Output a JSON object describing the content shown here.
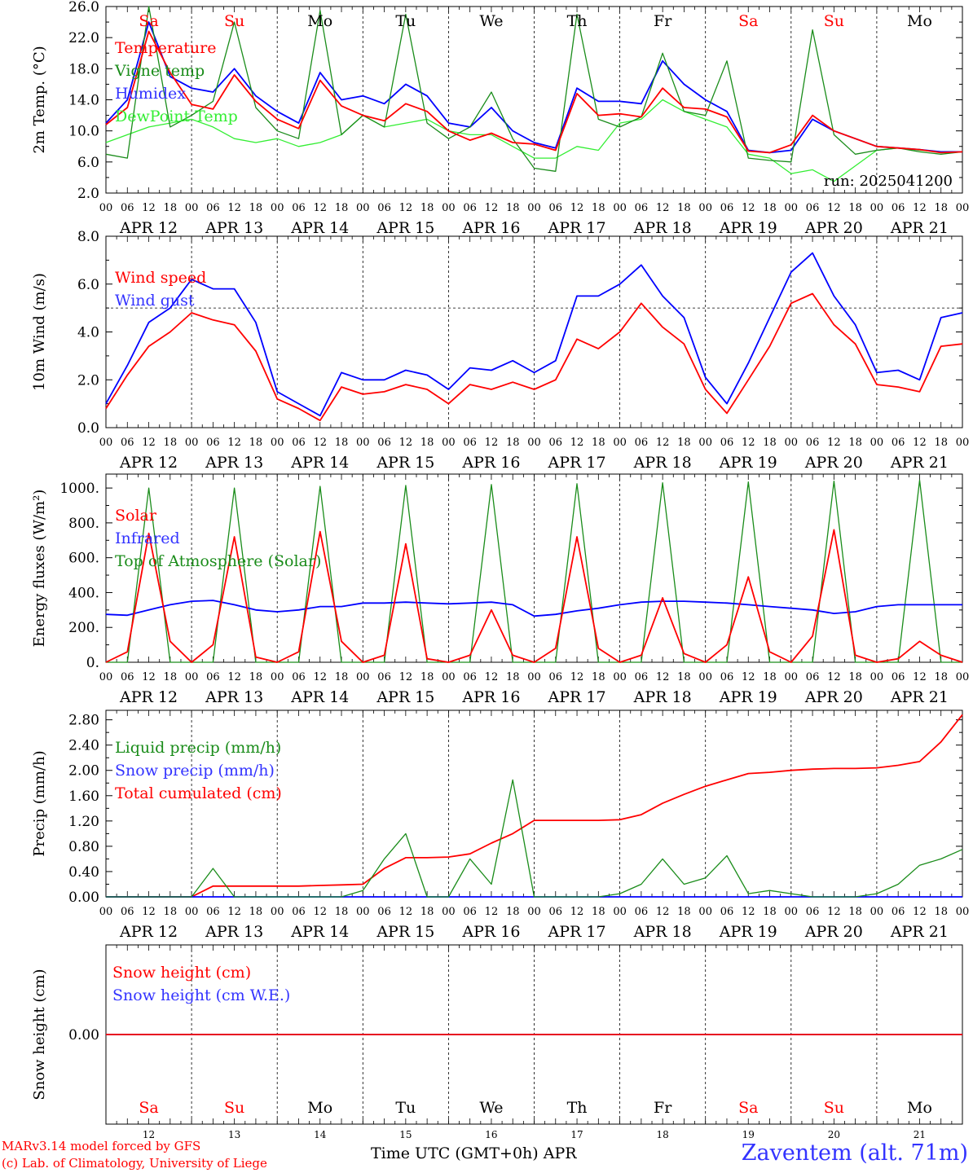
{
  "colors": {
    "red": "#ff0000",
    "green": "#1a8c1a",
    "blue": "#0000ff",
    "lightgreen": "#33ee33",
    "text": "#000000",
    "weekend": "#ff0000",
    "legend_blue": "#3333ff"
  },
  "footer": {
    "model": "MARv3.14 model forced by GFS",
    "credit": "(c) Lab. of Climatology, University of Liege",
    "xlabel": "Time UTC (GMT+0h) APR",
    "station": "Zaventem (alt. 71m)"
  },
  "days": {
    "weekday_names": [
      "Sa",
      "Su",
      "Mo",
      "Tu",
      "We",
      "Th",
      "Fr",
      "Sa",
      "Su",
      "Mo"
    ],
    "weekend_flags": [
      true,
      true,
      false,
      false,
      false,
      false,
      false,
      true,
      true,
      false
    ],
    "date_labels": [
      "APR 12",
      "APR 13",
      "APR 14",
      "APR 15",
      "APR 16",
      "APR 17",
      "APR 18",
      "APR 19",
      "APR 20",
      "APR 21"
    ],
    "day_numbers": [
      "12",
      "13",
      "14",
      "15",
      "16",
      "17",
      "18",
      "19",
      "20",
      "21"
    ],
    "hour_ticks": [
      "00",
      "06",
      "12",
      "18"
    ],
    "final_tick": "00"
  },
  "chart_data": [
    {
      "type": "line",
      "ylabel": "2m Temp. (°C)",
      "ylim": [
        2,
        26
      ],
      "yticks": [
        "2.0",
        "6.0",
        "10.0",
        "14.0",
        "18.0",
        "22.0",
        "26.0"
      ],
      "annotation": "run: 2025041200",
      "x_hours": [
        0,
        6,
        12,
        18,
        24,
        30,
        36,
        42,
        48,
        54,
        60,
        66,
        72,
        78,
        84,
        90,
        96,
        102,
        108,
        114,
        120,
        126,
        132,
        138,
        144,
        150,
        156,
        162,
        168,
        174,
        180,
        186,
        192,
        198,
        204,
        210,
        216,
        222,
        228,
        234,
        240
      ],
      "series": [
        {
          "name": "Temperature",
          "color": "red",
          "values": [
            10.8,
            13.0,
            22.8,
            17.5,
            13.4,
            12.8,
            17.2,
            13.8,
            11.5,
            10.3,
            16.5,
            13.2,
            12.0,
            11.3,
            13.5,
            12.5,
            10.0,
            8.8,
            9.7,
            8.5,
            8.3,
            7.5,
            14.8,
            12.0,
            12.2,
            11.8,
            15.5,
            13.0,
            12.8,
            11.8,
            7.4,
            7.2,
            8.2,
            12.0,
            10.0,
            9.0,
            8.0,
            7.8,
            7.6,
            7.2,
            7.3
          ]
        },
        {
          "name": "Vigne temp",
          "color": "green",
          "values": [
            7.0,
            6.5,
            26.0,
            10.5,
            12.0,
            13.8,
            24.0,
            13.0,
            10.0,
            9.0,
            25.5,
            9.5,
            12.0,
            10.5,
            25.0,
            11.0,
            9.0,
            10.5,
            15.0,
            9.0,
            5.2,
            4.8,
            25.0,
            11.5,
            10.5,
            11.8,
            20.0,
            12.5,
            12.0,
            19.0,
            6.5,
            6.2,
            6.0,
            23.0,
            9.5,
            7.0,
            7.5,
            7.8,
            7.3,
            7.0,
            7.3
          ]
        },
        {
          "name": "Humidex",
          "color": "blue",
          "values": [
            11.0,
            14.0,
            24.0,
            17.0,
            15.5,
            15.0,
            18.0,
            14.5,
            12.5,
            11.0,
            17.5,
            14.0,
            14.5,
            13.5,
            16.0,
            14.5,
            11.0,
            10.5,
            13.0,
            10.0,
            8.5,
            7.8,
            15.5,
            13.8,
            13.8,
            13.5,
            19.0,
            16.0,
            14.0,
            12.5,
            7.5,
            7.2,
            7.5,
            11.5,
            10.0,
            9.0,
            8.0,
            7.8,
            7.6,
            7.3,
            7.3
          ]
        },
        {
          "name": "DewPoint Temp",
          "color": "lightgreen",
          "values": [
            8.5,
            9.5,
            10.5,
            11.0,
            11.5,
            10.5,
            9.0,
            8.5,
            9.0,
            8.0,
            8.5,
            9.5,
            12.0,
            10.5,
            11.0,
            11.5,
            10.0,
            9.5,
            9.5,
            8.0,
            6.5,
            6.5,
            8.0,
            7.5,
            11.0,
            11.5,
            14.0,
            12.5,
            11.5,
            10.5,
            7.0,
            6.5,
            4.5,
            5.0,
            3.5,
            5.5,
            7.5,
            7.8,
            7.5,
            7.3,
            7.3
          ]
        }
      ],
      "legend_location": "left"
    },
    {
      "type": "line",
      "ylabel": "10m Wind (m/s)",
      "ylim": [
        0,
        8
      ],
      "yticks": [
        "0.0",
        "2.0",
        "4.0",
        "6.0",
        "8.0"
      ],
      "reference_line": 5.0,
      "x_hours": [
        0,
        6,
        12,
        18,
        24,
        30,
        36,
        42,
        48,
        54,
        60,
        66,
        72,
        78,
        84,
        90,
        96,
        102,
        108,
        114,
        120,
        126,
        132,
        138,
        144,
        150,
        156,
        162,
        168,
        174,
        180,
        186,
        192,
        198,
        204,
        210,
        216,
        222,
        228,
        234,
        240
      ],
      "series": [
        {
          "name": "Wind speed",
          "color": "red",
          "values": [
            0.8,
            2.2,
            3.4,
            4.0,
            4.8,
            4.5,
            4.3,
            3.2,
            1.2,
            0.8,
            0.3,
            1.7,
            1.4,
            1.5,
            1.8,
            1.6,
            1.0,
            1.8,
            1.6,
            1.9,
            1.6,
            2.0,
            3.7,
            3.3,
            4.0,
            5.2,
            4.2,
            3.5,
            1.6,
            0.6,
            2.0,
            3.4,
            5.2,
            5.6,
            4.3,
            3.5,
            1.8,
            1.7,
            1.5,
            3.4,
            3.5
          ]
        },
        {
          "name": "Wind gust",
          "color": "blue",
          "values": [
            1.0,
            2.6,
            4.4,
            5.0,
            6.2,
            5.8,
            5.8,
            4.4,
            1.5,
            1.0,
            0.5,
            2.3,
            2.0,
            2.0,
            2.4,
            2.2,
            1.6,
            2.5,
            2.4,
            2.8,
            2.3,
            2.8,
            5.5,
            5.5,
            6.0,
            6.8,
            5.5,
            4.6,
            2.1,
            1.0,
            2.7,
            4.6,
            6.5,
            7.3,
            5.5,
            4.3,
            2.3,
            2.4,
            2.0,
            4.6,
            4.8
          ]
        }
      ],
      "legend_location": "left"
    },
    {
      "type": "line",
      "ylabel": "Energy fluxes (W/m²)",
      "ylim": [
        0,
        1080
      ],
      "yticks": [
        "0.",
        "200.",
        "400.",
        "600.",
        "800.",
        "1000."
      ],
      "x_hours": [
        0,
        6,
        12,
        18,
        24,
        30,
        36,
        42,
        48,
        54,
        60,
        66,
        72,
        78,
        84,
        90,
        96,
        102,
        108,
        114,
        120,
        126,
        132,
        138,
        144,
        150,
        156,
        162,
        168,
        174,
        180,
        186,
        192,
        198,
        204,
        210,
        216,
        222,
        228,
        234,
        240
      ],
      "series": [
        {
          "name": "Solar",
          "color": "red",
          "values": [
            0,
            60,
            740,
            120,
            0,
            100,
            720,
            30,
            0,
            60,
            750,
            120,
            0,
            40,
            680,
            20,
            0,
            40,
            300,
            40,
            0,
            80,
            720,
            80,
            0,
            40,
            370,
            50,
            0,
            100,
            490,
            60,
            0,
            150,
            760,
            40,
            0,
            20,
            120,
            40,
            0
          ]
        },
        {
          "name": "Infrared",
          "color": "blue",
          "values": [
            275,
            270,
            300,
            330,
            350,
            355,
            330,
            300,
            290,
            300,
            320,
            320,
            340,
            340,
            345,
            340,
            335,
            340,
            345,
            330,
            265,
            275,
            295,
            310,
            330,
            345,
            350,
            350,
            345,
            340,
            330,
            320,
            310,
            300,
            280,
            290,
            320,
            330,
            330,
            330,
            330
          ]
        },
        {
          "name": "Top of Atmosphere (Solar)",
          "color": "green",
          "values": [
            0,
            0,
            1000,
            0,
            0,
            0,
            1000,
            0,
            0,
            0,
            1010,
            0,
            0,
            0,
            1015,
            0,
            0,
            0,
            1020,
            0,
            0,
            0,
            1025,
            0,
            0,
            0,
            1030,
            0,
            0,
            0,
            1035,
            0,
            0,
            0,
            1040,
            0,
            0,
            0,
            1045,
            0,
            0
          ]
        }
      ],
      "legend_location": "left"
    },
    {
      "type": "line",
      "ylabel": "Precip (mm/h)",
      "ylim": [
        0,
        2.95
      ],
      "yticks": [
        "0.00",
        "0.40",
        "0.80",
        "1.20",
        "1.60",
        "2.00",
        "2.40",
        "2.80"
      ],
      "x_hours": [
        0,
        6,
        12,
        18,
        24,
        30,
        36,
        42,
        48,
        54,
        60,
        66,
        72,
        78,
        84,
        90,
        96,
        102,
        108,
        114,
        120,
        126,
        132,
        138,
        144,
        150,
        156,
        162,
        168,
        174,
        180,
        186,
        192,
        198,
        204,
        210,
        216,
        222,
        228,
        234,
        240
      ],
      "series": [
        {
          "name": "Liquid precip (mm/h)",
          "color": "green",
          "values": [
            0,
            0,
            0,
            0,
            0,
            0.45,
            0,
            0,
            0,
            0,
            0,
            0,
            0.1,
            0.6,
            1.0,
            0,
            0,
            0.6,
            0.2,
            1.85,
            0,
            0,
            0,
            0,
            0.05,
            0.2,
            0.6,
            0.2,
            0.3,
            0.65,
            0.05,
            0.1,
            0.05,
            0,
            0,
            0,
            0.05,
            0.2,
            0.5,
            0.6,
            0.75
          ]
        },
        {
          "name": "Snow precip (mm/h)",
          "color": "blue",
          "values": [
            0,
            0,
            0,
            0,
            0,
            0,
            0,
            0,
            0,
            0,
            0,
            0,
            0,
            0,
            0,
            0,
            0,
            0,
            0,
            0,
            0,
            0,
            0,
            0,
            0,
            0,
            0,
            0,
            0,
            0,
            0,
            0,
            0,
            0,
            0,
            0,
            0,
            0,
            0,
            0,
            0
          ]
        },
        {
          "name": "Total cumulated (cm)",
          "color": "red",
          "values": [
            0,
            0,
            0,
            0,
            0,
            0.17,
            0.17,
            0.17,
            0.17,
            0.17,
            0.18,
            0.19,
            0.2,
            0.45,
            0.62,
            0.62,
            0.63,
            0.68,
            0.85,
            1.0,
            1.21,
            1.21,
            1.21,
            1.21,
            1.22,
            1.3,
            1.48,
            1.62,
            1.75,
            1.85,
            1.95,
            1.97,
            2.0,
            2.02,
            2.03,
            2.03,
            2.04,
            2.08,
            2.14,
            2.45,
            2.88
          ]
        }
      ],
      "legend_location": "left"
    },
    {
      "type": "line",
      "ylabel": "Snow height (cm)",
      "ylim": [
        -1,
        1
      ],
      "yticks": [
        "0.00"
      ],
      "x_hours": [
        0,
        240
      ],
      "series": [
        {
          "name": "Snow height (cm)",
          "color": "red",
          "values": [
            0,
            0
          ]
        },
        {
          "name": "Snow height (cm W.E.)",
          "color": "blue",
          "values": [
            0,
            0
          ]
        }
      ],
      "legend_location": "left"
    }
  ]
}
